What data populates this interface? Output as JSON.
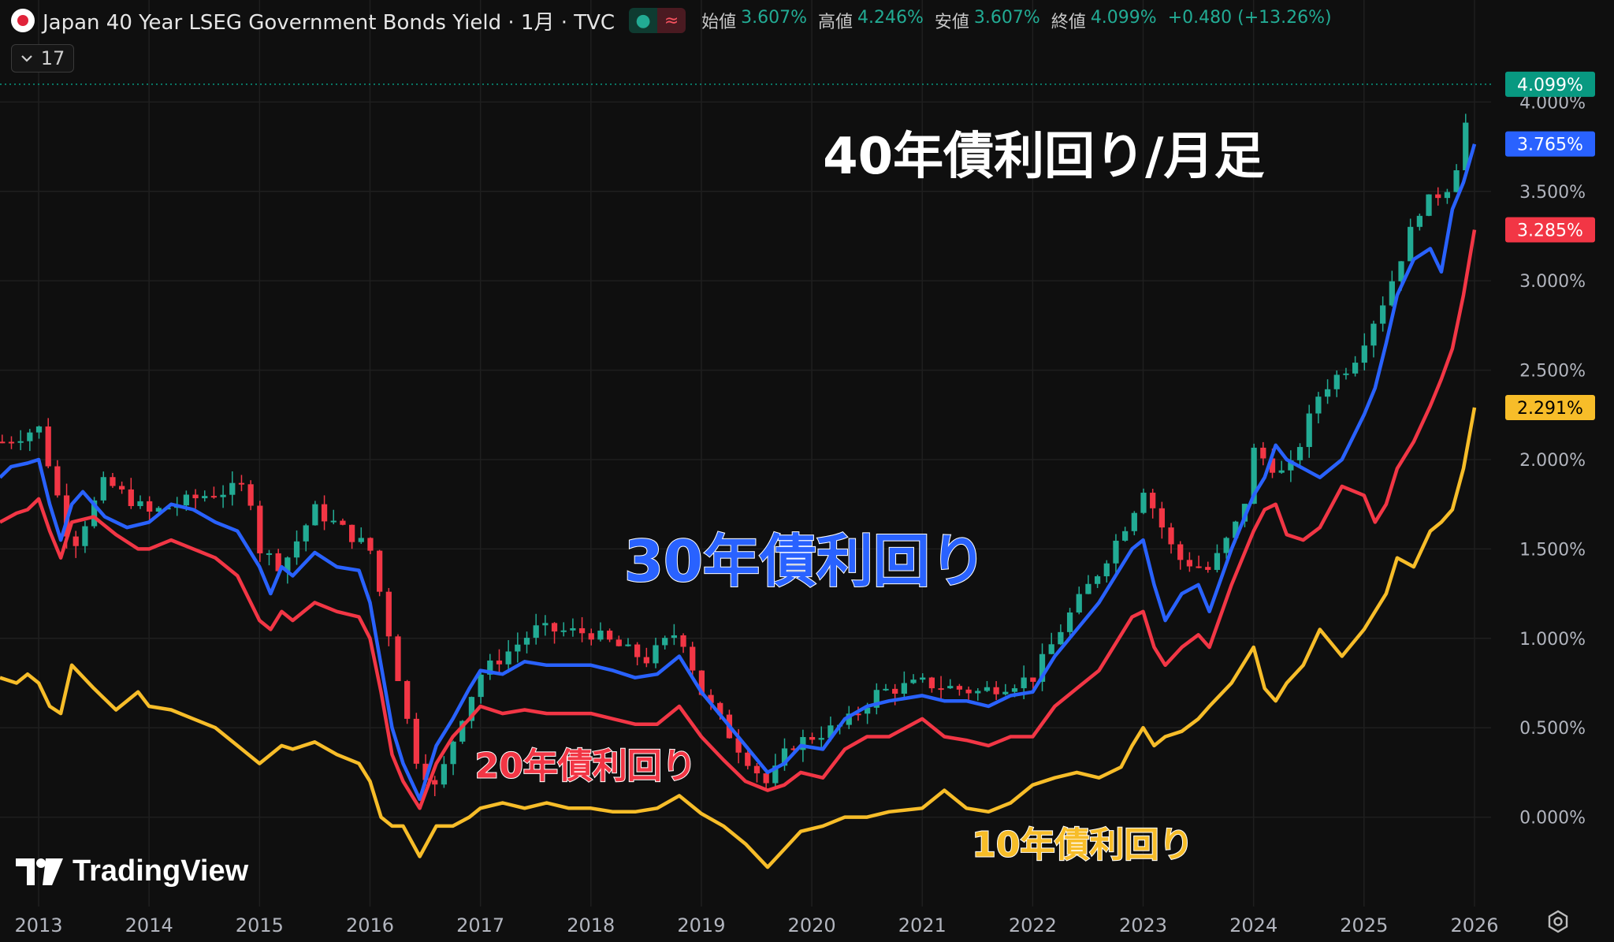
{
  "header": {
    "title": "Japan 40 Year LSEG Government Bonds Yield · 1月 · TVC",
    "pill_left": "●",
    "pill_right": "≈",
    "ohlc": [
      {
        "label": "始値",
        "value": "3.607%"
      },
      {
        "label": "高値",
        "value": "4.246%"
      },
      {
        "label": "安値",
        "value": "3.607%"
      },
      {
        "label": "終値",
        "value": "4.099%"
      }
    ],
    "change": "+0.480 (+13.26%)",
    "collapse_count": "17"
  },
  "brand": "TradingView",
  "colors": {
    "up": "#22ab94",
    "down": "#f23645",
    "line30": "#2962ff",
    "line20": "#f23645",
    "line10": "#f7bd29",
    "grid": "#1f1f1f",
    "bg": "#0f0f0f"
  },
  "chart_data": {
    "type": "line",
    "x_unit": "year",
    "xlim": [
      2012.65,
      2026.15
    ],
    "ylim": [
      -0.5,
      4.35
    ],
    "y_ticks": [
      0,
      0.5,
      1,
      1.5,
      2,
      2.5,
      3,
      3.5,
      4
    ],
    "y_tick_labels": [
      "0.000%",
      "0.500%",
      "1.000%",
      "1.500%",
      "2.000%",
      "2.500%",
      "3.000%",
      "3.500%",
      "4.000%"
    ],
    "x_ticks": [
      2013,
      2014,
      2015,
      2016,
      2017,
      2018,
      2019,
      2020,
      2021,
      2022,
      2023,
      2024,
      2025,
      2026
    ],
    "x_tick_labels": [
      "2013",
      "2014",
      "2015",
      "2016",
      "2017",
      "2018",
      "2019",
      "2020",
      "2021",
      "2022",
      "2023",
      "2024",
      "2025",
      "2026"
    ],
    "annotations": [
      {
        "text": "40年債利回り/月足",
        "color": "#ffffff",
        "x": 2020.1,
        "y": 3.6
      },
      {
        "text": "30年債利回り",
        "color": "#2962ff",
        "x": 2018.3,
        "y": 1.32
      },
      {
        "text": "20年債利回り",
        "color": "#f23645",
        "x": 2016.95,
        "y": 0.22
      },
      {
        "text": "10年債利回り",
        "color": "#f7bd29",
        "x": 2021.45,
        "y": -0.22
      }
    ],
    "price_labels": [
      {
        "text": "4.099%",
        "value": 4.099,
        "color": "#089981"
      },
      {
        "text": "3.765%",
        "value": 3.765,
        "color": "#2962ff"
      },
      {
        "text": "3.285%",
        "value": 3.285,
        "color": "#f23645"
      },
      {
        "text": "2.291%",
        "value": 2.291,
        "color": "#f7bd29"
      }
    ],
    "candles_anchor": {
      "name": "40年債利回り",
      "x": [
        2012.7,
        2013.0,
        2013.3,
        2013.6,
        2014.0,
        2014.5,
        2014.9,
        2015.0,
        2015.2,
        2015.5,
        2016.0,
        2016.2,
        2016.4,
        2016.6,
        2016.8,
        2017.0,
        2017.5,
        2018.0,
        2018.5,
        2018.8,
        2019.0,
        2019.3,
        2019.6,
        2019.8,
        2020.0,
        2020.3,
        2020.6,
        2021.0,
        2021.5,
        2022.0,
        2022.3,
        2022.6,
        2022.9,
        2023.0,
        2023.3,
        2023.6,
        2023.9,
        2024.0,
        2024.3,
        2024.6,
        2024.9,
        2025.2,
        2025.5,
        2025.8,
        2026.0
      ],
      "y": [
        2.1,
        2.18,
        1.5,
        1.88,
        1.7,
        1.8,
        1.85,
        1.5,
        1.4,
        1.72,
        1.5,
        0.95,
        0.35,
        0.15,
        0.52,
        0.8,
        1.05,
        1.03,
        0.88,
        1.05,
        0.7,
        0.42,
        0.18,
        0.4,
        0.45,
        0.52,
        0.7,
        0.75,
        0.7,
        0.78,
        1.1,
        1.38,
        1.7,
        1.85,
        1.45,
        1.38,
        1.7,
        2.05,
        1.9,
        2.38,
        2.55,
        2.92,
        3.4,
        3.55,
        4.099
      ]
    },
    "series": [
      {
        "name": "30年債利回り",
        "color": "#2962ff",
        "x": [
          2012.65,
          2012.75,
          2012.9,
          2013.0,
          2013.1,
          2013.2,
          2013.3,
          2013.4,
          2013.5,
          2013.6,
          2013.8,
          2014.0,
          2014.2,
          2014.4,
          2014.6,
          2014.8,
          2015.0,
          2015.1,
          2015.2,
          2015.3,
          2015.5,
          2015.7,
          2015.9,
          2016.0,
          2016.1,
          2016.2,
          2016.3,
          2016.45,
          2016.6,
          2016.75,
          2016.9,
          2017.0,
          2017.2,
          2017.4,
          2017.6,
          2017.8,
          2018.0,
          2018.2,
          2018.4,
          2018.6,
          2018.8,
          2019.0,
          2019.2,
          2019.4,
          2019.6,
          2019.75,
          2019.9,
          2020.1,
          2020.3,
          2020.5,
          2020.7,
          2021.0,
          2021.2,
          2021.4,
          2021.6,
          2021.8,
          2022.0,
          2022.2,
          2022.4,
          2022.6,
          2022.8,
          2022.9,
          2023.0,
          2023.1,
          2023.2,
          2023.35,
          2023.5,
          2023.6,
          2023.8,
          2024.0,
          2024.1,
          2024.2,
          2024.3,
          2024.45,
          2024.6,
          2024.8,
          2025.0,
          2025.1,
          2025.2,
          2025.3,
          2025.45,
          2025.6,
          2025.7,
          2025.8,
          2025.9,
          2026.0
        ],
        "values": [
          1.9,
          1.96,
          1.98,
          2.0,
          1.75,
          1.55,
          1.75,
          1.82,
          1.75,
          1.68,
          1.62,
          1.65,
          1.75,
          1.72,
          1.65,
          1.6,
          1.4,
          1.25,
          1.4,
          1.35,
          1.48,
          1.4,
          1.38,
          1.2,
          0.85,
          0.5,
          0.3,
          0.1,
          0.4,
          0.55,
          0.72,
          0.82,
          0.8,
          0.87,
          0.85,
          0.85,
          0.85,
          0.82,
          0.78,
          0.8,
          0.9,
          0.7,
          0.55,
          0.4,
          0.25,
          0.3,
          0.4,
          0.38,
          0.55,
          0.62,
          0.65,
          0.68,
          0.65,
          0.65,
          0.62,
          0.68,
          0.7,
          0.9,
          1.05,
          1.2,
          1.4,
          1.5,
          1.55,
          1.3,
          1.1,
          1.25,
          1.3,
          1.15,
          1.5,
          1.8,
          1.9,
          2.08,
          2.0,
          1.95,
          1.9,
          2.0,
          2.25,
          2.4,
          2.65,
          2.92,
          3.12,
          3.18,
          3.05,
          3.4,
          3.55,
          3.765
        ]
      },
      {
        "name": "20年債利回り",
        "color": "#f23645",
        "x": [
          2012.65,
          2012.8,
          2012.9,
          2013.0,
          2013.1,
          2013.2,
          2013.3,
          2013.5,
          2013.7,
          2013.9,
          2014.0,
          2014.2,
          2014.4,
          2014.6,
          2014.8,
          2015.0,
          2015.1,
          2015.2,
          2015.3,
          2015.5,
          2015.7,
          2015.9,
          2016.0,
          2016.1,
          2016.2,
          2016.3,
          2016.45,
          2016.6,
          2016.75,
          2016.9,
          2017.0,
          2017.2,
          2017.4,
          2017.6,
          2017.8,
          2018.0,
          2018.2,
          2018.4,
          2018.6,
          2018.8,
          2019.0,
          2019.2,
          2019.4,
          2019.6,
          2019.75,
          2019.9,
          2020.1,
          2020.3,
          2020.5,
          2020.7,
          2021.0,
          2021.2,
          2021.4,
          2021.6,
          2021.8,
          2022.0,
          2022.2,
          2022.4,
          2022.6,
          2022.8,
          2022.9,
          2023.0,
          2023.1,
          2023.2,
          2023.35,
          2023.5,
          2023.6,
          2023.8,
          2024.0,
          2024.1,
          2024.2,
          2024.3,
          2024.45,
          2024.6,
          2024.8,
          2025.0,
          2025.1,
          2025.2,
          2025.3,
          2025.45,
          2025.6,
          2025.7,
          2025.8,
          2025.9,
          2026.0
        ],
        "values": [
          1.65,
          1.7,
          1.72,
          1.78,
          1.6,
          1.45,
          1.65,
          1.68,
          1.58,
          1.5,
          1.5,
          1.55,
          1.5,
          1.45,
          1.35,
          1.1,
          1.05,
          1.15,
          1.1,
          1.2,
          1.15,
          1.12,
          1.0,
          0.7,
          0.35,
          0.2,
          0.05,
          0.3,
          0.45,
          0.55,
          0.62,
          0.58,
          0.6,
          0.58,
          0.58,
          0.58,
          0.55,
          0.52,
          0.52,
          0.62,
          0.45,
          0.32,
          0.2,
          0.15,
          0.18,
          0.25,
          0.22,
          0.38,
          0.45,
          0.45,
          0.55,
          0.45,
          0.43,
          0.4,
          0.45,
          0.45,
          0.62,
          0.72,
          0.82,
          1.02,
          1.12,
          1.15,
          0.95,
          0.85,
          0.95,
          1.02,
          0.95,
          1.3,
          1.6,
          1.72,
          1.75,
          1.58,
          1.55,
          1.62,
          1.85,
          1.8,
          1.65,
          1.75,
          1.95,
          2.1,
          2.3,
          2.45,
          2.62,
          2.92,
          3.285
        ]
      },
      {
        "name": "10年債利回り",
        "color": "#f7bd29",
        "x": [
          2012.65,
          2012.8,
          2012.9,
          2013.0,
          2013.1,
          2013.2,
          2013.3,
          2013.5,
          2013.7,
          2013.9,
          2014.0,
          2014.2,
          2014.4,
          2014.6,
          2014.8,
          2015.0,
          2015.1,
          2015.2,
          2015.3,
          2015.5,
          2015.7,
          2015.9,
          2016.0,
          2016.1,
          2016.2,
          2016.3,
          2016.45,
          2016.6,
          2016.75,
          2016.9,
          2017.0,
          2017.2,
          2017.4,
          2017.6,
          2017.8,
          2018.0,
          2018.2,
          2018.4,
          2018.6,
          2018.8,
          2019.0,
          2019.2,
          2019.4,
          2019.6,
          2019.75,
          2019.9,
          2020.1,
          2020.3,
          2020.5,
          2020.7,
          2021.0,
          2021.2,
          2021.4,
          2021.6,
          2021.8,
          2022.0,
          2022.2,
          2022.4,
          2022.6,
          2022.8,
          2022.9,
          2023.0,
          2023.1,
          2023.2,
          2023.35,
          2023.5,
          2023.6,
          2023.8,
          2024.0,
          2024.1,
          2024.2,
          2024.3,
          2024.45,
          2024.6,
          2024.8,
          2025.0,
          2025.1,
          2025.2,
          2025.3,
          2025.45,
          2025.6,
          2025.7,
          2025.8,
          2025.9,
          2026.0
        ],
        "values": [
          0.78,
          0.75,
          0.8,
          0.75,
          0.62,
          0.58,
          0.85,
          0.72,
          0.6,
          0.7,
          0.62,
          0.6,
          0.55,
          0.5,
          0.4,
          0.3,
          0.35,
          0.4,
          0.38,
          0.42,
          0.35,
          0.3,
          0.2,
          0.0,
          -0.05,
          -0.05,
          -0.22,
          -0.05,
          -0.05,
          0.0,
          0.05,
          0.08,
          0.05,
          0.08,
          0.05,
          0.05,
          0.03,
          0.03,
          0.05,
          0.12,
          0.02,
          -0.05,
          -0.15,
          -0.28,
          -0.18,
          -0.08,
          -0.05,
          0.0,
          0.0,
          0.03,
          0.05,
          0.15,
          0.05,
          0.03,
          0.08,
          0.18,
          0.22,
          0.25,
          0.22,
          0.28,
          0.4,
          0.5,
          0.4,
          0.45,
          0.48,
          0.55,
          0.62,
          0.75,
          0.95,
          0.72,
          0.65,
          0.75,
          0.85,
          1.05,
          0.9,
          1.05,
          1.15,
          1.25,
          1.45,
          1.4,
          1.6,
          1.65,
          1.72,
          1.95,
          2.291
        ]
      }
    ]
  }
}
